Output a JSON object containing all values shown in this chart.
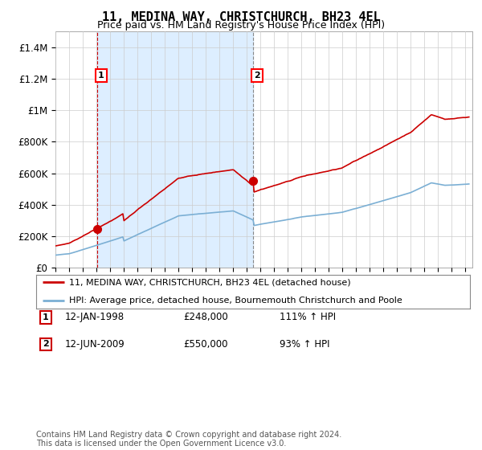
{
  "title": "11, MEDINA WAY, CHRISTCHURCH, BH23 4EL",
  "subtitle": "Price paid vs. HM Land Registry's House Price Index (HPI)",
  "legend_line1": "11, MEDINA WAY, CHRISTCHURCH, BH23 4EL (detached house)",
  "legend_line2": "HPI: Average price, detached house, Bournemouth Christchurch and Poole",
  "sale1_label": "1",
  "sale1_date": "12-JAN-1998",
  "sale1_price": "£248,000",
  "sale1_hpi": "111% ↑ HPI",
  "sale1_year": 1998.04,
  "sale1_value": 248000,
  "sale2_label": "2",
  "sale2_date": "12-JUN-2009",
  "sale2_price": "£550,000",
  "sale2_hpi": "93% ↑ HPI",
  "sale2_year": 2009.45,
  "sale2_value": 550000,
  "footer": "Contains HM Land Registry data © Crown copyright and database right 2024.\nThis data is licensed under the Open Government Licence v3.0.",
  "hpi_color": "#7bafd4",
  "price_color": "#cc0000",
  "shade_color": "#ddeeff",
  "ylim_max": 1500000,
  "xlim_min": 1995.0,
  "xlim_max": 2025.5,
  "background_color": "#ffffff",
  "grid_color": "#cccccc"
}
